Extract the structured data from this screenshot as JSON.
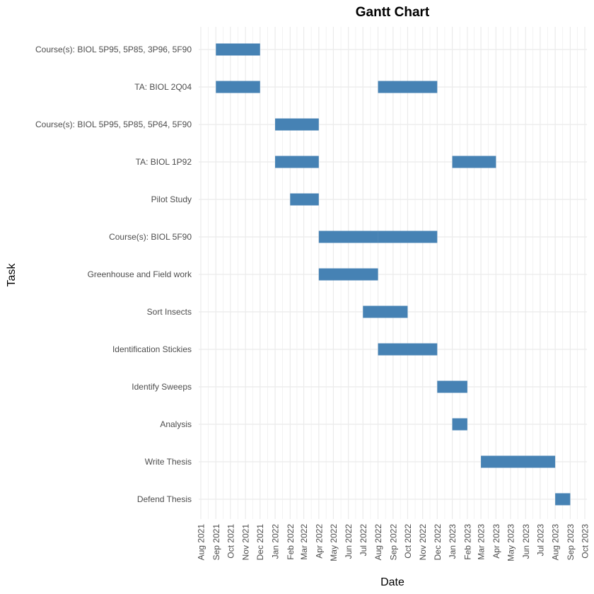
{
  "chart_data": {
    "type": "gantt",
    "title": "Gantt Chart",
    "xlabel": "Date",
    "ylabel": "Task",
    "grid": true,
    "bar_color": "#4682B4",
    "grid_color": "#EBEBEB",
    "xlim": [
      "2021-08-01",
      "2023-10-01"
    ],
    "x_tick_labels": [
      "Aug 2021",
      "Sep 2021",
      "Oct 2021",
      "Nov 2021",
      "Dec 2021",
      "Jan 2022",
      "Feb 2022",
      "Mar 2022",
      "Apr 2022",
      "May 2022",
      "Jun 2022",
      "Jul 2022",
      "Aug 2022",
      "Sep 2022",
      "Oct 2022",
      "Nov 2022",
      "Dec 2022",
      "Jan 2023",
      "Feb 2023",
      "Mar 2023",
      "Apr 2023",
      "May 2023",
      "Jun 2023",
      "Jul 2023",
      "Aug 2023",
      "Sep 2023",
      "Oct 2023"
    ],
    "tasks": [
      {
        "name": "Course(s): BIOL 5P95, 5P85, 3P96, 5F90",
        "segments": [
          {
            "start": "2021-09-01",
            "end": "2021-12-01"
          }
        ]
      },
      {
        "name": "TA: BIOL 2Q04",
        "segments": [
          {
            "start": "2021-09-01",
            "end": "2021-12-01"
          },
          {
            "start": "2022-08-01",
            "end": "2022-12-01"
          }
        ]
      },
      {
        "name": "Course(s): BIOL 5P95, 5P85, 5P64, 5F90",
        "segments": [
          {
            "start": "2022-01-01",
            "end": "2022-04-01"
          }
        ]
      },
      {
        "name": "TA: BIOL 1P92",
        "segments": [
          {
            "start": "2022-01-01",
            "end": "2022-04-01"
          },
          {
            "start": "2023-01-01",
            "end": "2023-04-01"
          }
        ]
      },
      {
        "name": "Pilot Study",
        "segments": [
          {
            "start": "2022-02-01",
            "end": "2022-04-01"
          }
        ]
      },
      {
        "name": "Course(s): BIOL 5F90",
        "segments": [
          {
            "start": "2022-04-01",
            "end": "2022-08-01"
          },
          {
            "start": "2022-08-01",
            "end": "2022-12-01"
          }
        ]
      },
      {
        "name": "Greenhouse and Field work",
        "segments": [
          {
            "start": "2022-04-01",
            "end": "2022-08-01"
          }
        ]
      },
      {
        "name": "Sort Insects",
        "segments": [
          {
            "start": "2022-07-01",
            "end": "2022-10-01"
          }
        ]
      },
      {
        "name": "Identification Stickies",
        "segments": [
          {
            "start": "2022-08-01",
            "end": "2022-12-01"
          }
        ]
      },
      {
        "name": "Identify Sweeps",
        "segments": [
          {
            "start": "2022-12-01",
            "end": "2023-02-01"
          }
        ]
      },
      {
        "name": "Analysis",
        "segments": [
          {
            "start": "2023-01-01",
            "end": "2023-02-01"
          }
        ]
      },
      {
        "name": "Write Thesis",
        "segments": [
          {
            "start": "2023-03-01",
            "end": "2023-08-01"
          }
        ]
      },
      {
        "name": "Defend Thesis",
        "segments": [
          {
            "start": "2023-08-01",
            "end": "2023-09-01"
          }
        ]
      }
    ]
  }
}
